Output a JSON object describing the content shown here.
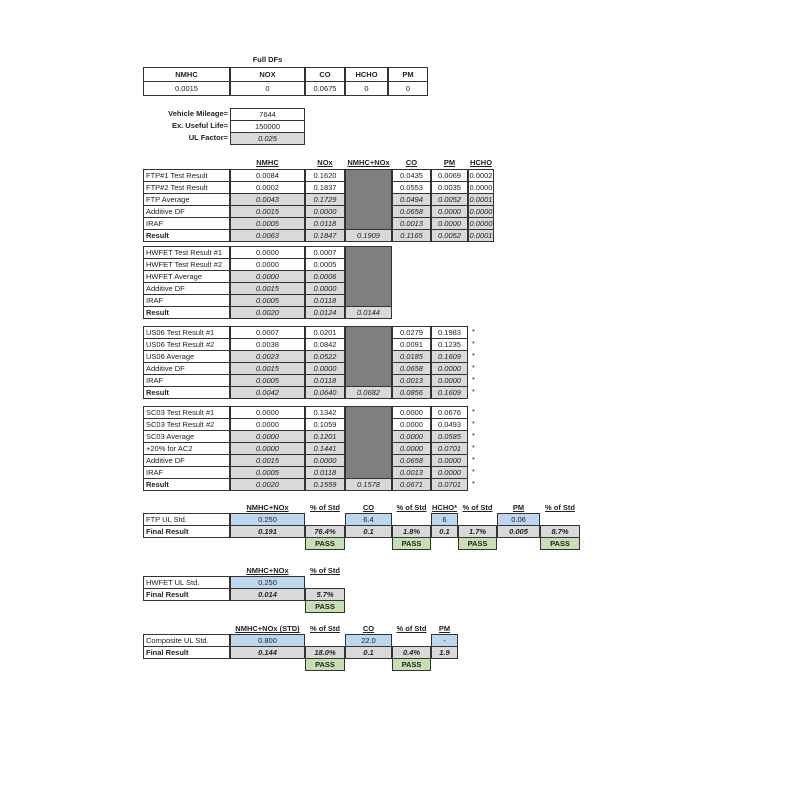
{
  "full_dfs": {
    "title": "Full DFs",
    "headers": [
      "NMHC",
      "NOX",
      "CO",
      "HCHO",
      "PM"
    ],
    "values": [
      "0.0015",
      "0",
      "0.0675",
      "0",
      "0"
    ]
  },
  "mileage": {
    "labels": [
      "Vehicle Mileage=",
      "Ex. Useful Life=",
      "UL Factor="
    ],
    "values": [
      "7644",
      "150000",
      "0.025"
    ]
  },
  "emissions": {
    "headers": [
      "NMHC",
      "NOx",
      "NMHC+NOx",
      "CO",
      "PM",
      "HCHO"
    ],
    "star": "*",
    "ftp": [
      [
        "FTP#1 Test Result",
        "0.0084",
        "0.1620",
        "",
        "0.0435",
        "0.0069",
        "0.0002"
      ],
      [
        "FTP#2 Test Result",
        "0.0002",
        "0.1837",
        "",
        "0.0553",
        "0.0035",
        "0.0000"
      ],
      [
        "FTP Average",
        "0.0043",
        "0.1729",
        "",
        "0.0494",
        "0.0052",
        "0.0001"
      ],
      [
        "Additive DF",
        "0.0015",
        "0.0000",
        "",
        "0.0658",
        "0.0000",
        "0.0000"
      ],
      [
        "IRAF",
        "0.0005",
        "0.0118",
        "",
        "0.0013",
        "0.0000",
        "0.0000"
      ],
      [
        "Result",
        "0.0063",
        "0.1847",
        "0.1909",
        "0.1165",
        "0.0052",
        "0.0001"
      ]
    ],
    "hwfet": [
      [
        "HWFET Test Result #1",
        "0.0000",
        "0.0007",
        ""
      ],
      [
        "HWFET Test Result #2",
        "0.0000",
        "0.0005",
        ""
      ],
      [
        "HWFET Average",
        "0.0000",
        "0.0006",
        ""
      ],
      [
        "Additive DF",
        "0.0015",
        "0.0000",
        ""
      ],
      [
        "IRAF",
        "0.0005",
        "0.0118",
        ""
      ],
      [
        "Result",
        "0.0020",
        "0.0124",
        "0.0144"
      ]
    ],
    "us06": [
      [
        "US06 Test Result #1",
        "0.0007",
        "0.0201",
        "",
        "0.0279",
        "0.1983"
      ],
      [
        "US06 Test Result #2",
        "0.0038",
        "0.0842",
        "",
        "0.0091",
        "0.1235"
      ],
      [
        "US06 Average",
        "0.0023",
        "0.0522",
        "",
        "0.0185",
        "0.1609"
      ],
      [
        "Additive DF",
        "0.0015",
        "0.0000",
        "",
        "0.0658",
        "0.0000"
      ],
      [
        "IRAF",
        "0.0005",
        "0.0118",
        "",
        "0.0013",
        "0.0000"
      ],
      [
        "Result",
        "0.0042",
        "0.0640",
        "0.0682",
        "0.0856",
        "0.1609"
      ]
    ],
    "sc03": [
      [
        "SC03 Test Result #1",
        "0.0000",
        "0.1342",
        "",
        "0.0000",
        "0.0676"
      ],
      [
        "SC03 Test Result #2",
        "0.0000",
        "0.1059",
        "",
        "0.0000",
        "0.0493"
      ],
      [
        "SC03 Average",
        "0.0000",
        "0.1201",
        "",
        "0.0000",
        "0.0585"
      ],
      [
        "+20% for AC2",
        "0.0000",
        "0.1441",
        "",
        "0.0000",
        "0.0701"
      ],
      [
        "Additive DF",
        "0.0015",
        "0.0000",
        "",
        "0.0658",
        "0.0000"
      ],
      [
        "IRAF",
        "0.0005",
        "0.0118",
        "",
        "0.0013",
        "0.0000"
      ],
      [
        "Result",
        "0.0020",
        "0.1559",
        "0.1578",
        "0.0671",
        "0.0701"
      ]
    ]
  },
  "ftp_ul": {
    "headers": [
      "",
      "NMHC+NOx",
      "% of Std",
      "CO",
      "% of Std",
      "HCHO*",
      "% of Std",
      "PM",
      "% of Std"
    ],
    "std": [
      "FTP UL Std.",
      "0.250",
      "",
      "6.4",
      "",
      "6",
      "",
      "0.06",
      ""
    ],
    "final": [
      "Final Result",
      "0.191",
      "76.4%",
      "0.1",
      "1.8%",
      "0.1",
      "1.7%",
      "0.005",
      "8.7%"
    ],
    "pass": [
      "",
      "",
      "PASS",
      "",
      "PASS",
      "",
      "PASS",
      "",
      "PASS"
    ]
  },
  "hwfet_ul": {
    "headers": [
      "",
      "NMHC+NOx",
      "% of Std"
    ],
    "std": [
      "HWFET UL Std.",
      "0.250",
      ""
    ],
    "final": [
      "Final Result",
      "0.014",
      "5.7%"
    ],
    "pass": [
      "",
      "",
      "PASS"
    ]
  },
  "composite_ul": {
    "headers": [
      "",
      "NMHC+NOx (STD)",
      "% of Std",
      "CO",
      "% of Std",
      "PM"
    ],
    "std": [
      "Composite UL Std.",
      "0.800",
      "",
      "22.0",
      "",
      "-"
    ],
    "final": [
      "Final Result",
      "0.144",
      "18.0%",
      "0.1",
      "0.4%",
      "1.9"
    ],
    "pass": [
      "",
      "",
      "PASS",
      "",
      "PASS",
      ""
    ]
  },
  "colors": {
    "gray": "#d9d9d9",
    "dark": "#7f7f7f",
    "blue": "#bdd7ee",
    "pass_green": "#c6e0b4"
  }
}
